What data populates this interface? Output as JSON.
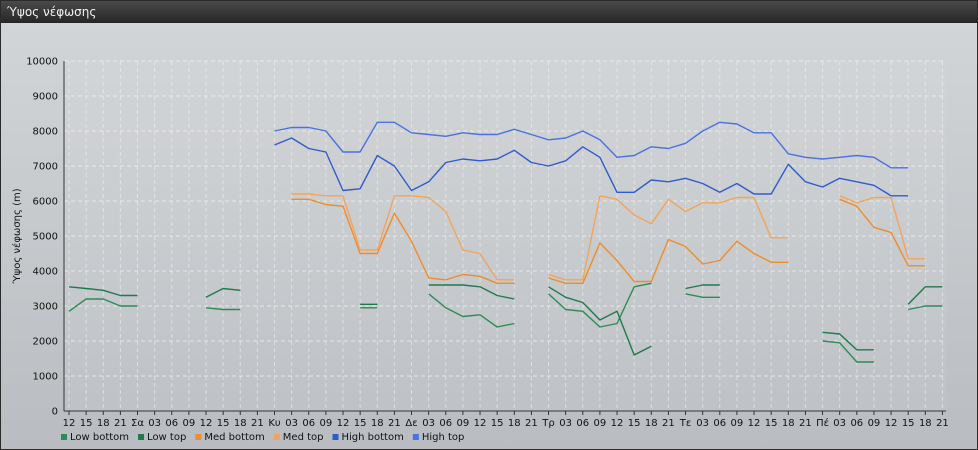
{
  "window": {
    "title": "Ύψος νέφωσης"
  },
  "chart_data": {
    "type": "line",
    "ylabel": "Ύψος νέφωσης (m)",
    "ylim": [
      0,
      10000
    ],
    "yticks": [
      0,
      1000,
      2000,
      3000,
      4000,
      5000,
      6000,
      7000,
      8000,
      9000,
      10000
    ],
    "grid": true,
    "legend_position": "bottom-left",
    "x_labels": [
      "12",
      "15",
      "18",
      "21",
      "Σα",
      "03",
      "06",
      "09",
      "12",
      "15",
      "18",
      "21",
      "Κυ",
      "03",
      "06",
      "09",
      "12",
      "15",
      "18",
      "21",
      "Δε",
      "03",
      "06",
      "09",
      "12",
      "15",
      "18",
      "21",
      "Τρ",
      "03",
      "06",
      "09",
      "12",
      "15",
      "18",
      "21",
      "Τε",
      "03",
      "06",
      "09",
      "12",
      "15",
      "18",
      "21",
      "Πέ",
      "03",
      "06",
      "09",
      "12",
      "15",
      "18",
      "21"
    ],
    "series": [
      {
        "name": "Low bottom",
        "color": "#2e8b57",
        "values": [
          2850,
          3200,
          3200,
          3000,
          3000,
          null,
          null,
          null,
          2950,
          2900,
          2900,
          null,
          null,
          null,
          null,
          null,
          null,
          2950,
          2950,
          null,
          null,
          3350,
          2950,
          2700,
          2750,
          2400,
          2500,
          null,
          3350,
          2900,
          2850,
          2400,
          2500,
          3550,
          3650,
          null,
          3350,
          3250,
          3250,
          null,
          null,
          null,
          null,
          null,
          2000,
          1950,
          1400,
          1400,
          null,
          2900,
          3000,
          3000
        ]
      },
      {
        "name": "Low top",
        "color": "#1f7a4a",
        "values": [
          3550,
          3500,
          3450,
          3300,
          3300,
          null,
          null,
          null,
          3250,
          3500,
          3450,
          null,
          null,
          null,
          null,
          null,
          null,
          3050,
          3050,
          null,
          null,
          3600,
          3600,
          3600,
          3550,
          3300,
          3200,
          null,
          3550,
          3250,
          3100,
          2600,
          2850,
          1600,
          1850,
          null,
          3500,
          3600,
          3600,
          null,
          null,
          null,
          null,
          null,
          2250,
          2200,
          1750,
          1750,
          null,
          3050,
          3550,
          3550
        ]
      },
      {
        "name": "Med bottom",
        "color": "#f08c2a",
        "values": [
          null,
          null,
          null,
          null,
          null,
          null,
          null,
          null,
          null,
          null,
          null,
          null,
          null,
          6050,
          6050,
          5900,
          5850,
          4500,
          4500,
          5650,
          4850,
          3800,
          3750,
          3900,
          3850,
          3650,
          3650,
          null,
          3800,
          3650,
          3650,
          4800,
          4300,
          3700,
          3700,
          4900,
          4700,
          4200,
          4300,
          4850,
          4500,
          4250,
          4250,
          null,
          null,
          6050,
          5850,
          5250,
          5100,
          4150,
          4150,
          null
        ]
      },
      {
        "name": "Med top",
        "color": "#f5a35a",
        "values": [
          null,
          null,
          null,
          null,
          null,
          null,
          null,
          null,
          null,
          null,
          null,
          null,
          null,
          6200,
          6200,
          6150,
          6150,
          4600,
          4600,
          6150,
          6150,
          6100,
          5700,
          4600,
          4500,
          3750,
          3750,
          null,
          3900,
          3750,
          3750,
          6150,
          6050,
          5600,
          5350,
          6050,
          5700,
          5950,
          5950,
          6100,
          6100,
          4950,
          4950,
          null,
          null,
          6150,
          5950,
          6100,
          6100,
          4350,
          4350,
          null
        ]
      },
      {
        "name": "High bottom",
        "color": "#2f5bd0",
        "values": [
          null,
          null,
          null,
          null,
          null,
          null,
          null,
          null,
          null,
          null,
          null,
          null,
          7600,
          7800,
          7500,
          7400,
          6300,
          6350,
          7300,
          7000,
          6300,
          6550,
          7100,
          7200,
          7150,
          7200,
          7450,
          7100,
          7000,
          7150,
          7550,
          7250,
          6250,
          6250,
          6600,
          6550,
          6650,
          6500,
          6250,
          6500,
          6200,
          6200,
          7050,
          6550,
          6400,
          6650,
          6550,
          6450,
          6150,
          6150,
          null,
          null
        ]
      },
      {
        "name": "High top",
        "color": "#4a72e0",
        "values": [
          null,
          null,
          null,
          null,
          null,
          null,
          null,
          null,
          null,
          null,
          null,
          null,
          8000,
          8100,
          8100,
          8000,
          7400,
          7400,
          8250,
          8250,
          7950,
          7900,
          7850,
          7950,
          7900,
          7900,
          8050,
          7900,
          7750,
          7800,
          8000,
          7750,
          7250,
          7300,
          7550,
          7500,
          7650,
          8000,
          8250,
          8200,
          7950,
          7950,
          7350,
          7250,
          7200,
          7250,
          7300,
          7250,
          6950,
          6950,
          null,
          null
        ]
      }
    ]
  }
}
